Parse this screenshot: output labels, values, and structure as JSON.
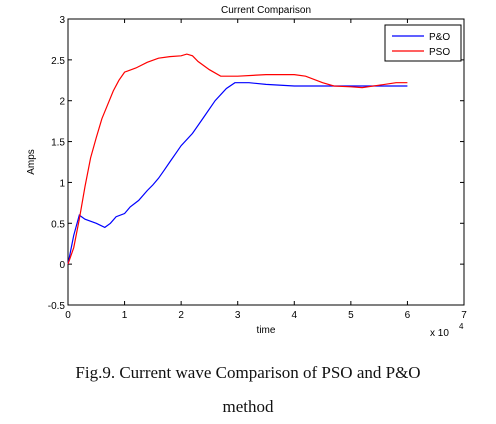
{
  "chart_data": {
    "type": "line",
    "title": "Current Comparison",
    "xlabel": "time",
    "ylabel": "Amps",
    "x_multiplier_label": "x 10",
    "x_multiplier_exp": "4",
    "xlim": [
      0,
      7
    ],
    "ylim": [
      -0.5,
      3
    ],
    "xticks": [
      "0",
      "1",
      "2",
      "3",
      "4",
      "5",
      "6",
      "7"
    ],
    "yticks": [
      "-0.5",
      "0",
      "0.5",
      "1",
      "1.5",
      "2",
      "2.5",
      "3"
    ],
    "legend_position": "top-right",
    "grid": false,
    "series": [
      {
        "name": "P&O",
        "color": "#0000ff",
        "x": [
          0,
          0.1,
          0.2,
          0.3,
          0.5,
          0.65,
          0.75,
          0.85,
          1.0,
          1.1,
          1.25,
          1.4,
          1.5,
          1.6,
          1.7,
          1.8,
          1.9,
          2.0,
          2.2,
          2.4,
          2.6,
          2.8,
          2.95,
          3.2,
          3.5,
          4.0,
          4.5,
          5.0,
          5.5,
          6.0
        ],
        "y": [
          0,
          0.35,
          0.6,
          0.55,
          0.5,
          0.45,
          0.5,
          0.58,
          0.62,
          0.7,
          0.78,
          0.9,
          0.97,
          1.05,
          1.15,
          1.25,
          1.35,
          1.45,
          1.6,
          1.8,
          2.0,
          2.15,
          2.22,
          2.22,
          2.2,
          2.18,
          2.18,
          2.18,
          2.18,
          2.18
        ]
      },
      {
        "name": "PSO",
        "color": "#ff0000",
        "x": [
          0,
          0.1,
          0.2,
          0.3,
          0.4,
          0.5,
          0.6,
          0.7,
          0.8,
          0.9,
          1.0,
          1.2,
          1.4,
          1.6,
          1.8,
          2.0,
          2.1,
          2.2,
          2.3,
          2.5,
          2.7,
          3.0,
          3.5,
          4.0,
          4.2,
          4.5,
          4.7,
          5.0,
          5.2,
          5.5,
          5.8,
          6.0
        ],
        "y": [
          0,
          0.2,
          0.55,
          0.95,
          1.3,
          1.55,
          1.78,
          1.95,
          2.12,
          2.25,
          2.35,
          2.4,
          2.47,
          2.52,
          2.54,
          2.55,
          2.57,
          2.55,
          2.48,
          2.38,
          2.3,
          2.3,
          2.32,
          2.32,
          2.3,
          2.22,
          2.18,
          2.17,
          2.16,
          2.19,
          2.22,
          2.22
        ]
      }
    ]
  },
  "caption": {
    "line1": "Fig.9. Current wave Comparison of PSO and P&O",
    "line2": "method"
  }
}
